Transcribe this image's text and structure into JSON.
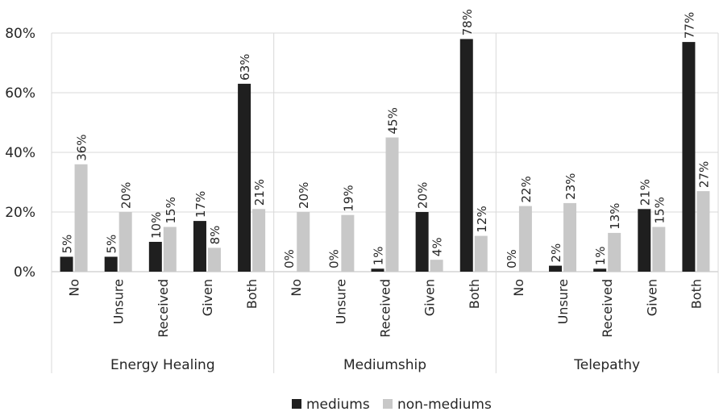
{
  "chart_data": {
    "type": "bar",
    "groups": [
      {
        "name": "Energy Healing",
        "categories": [
          "No",
          "Unsure",
          "Received",
          "Given",
          "Both"
        ]
      },
      {
        "name": "Mediumship",
        "categories": [
          "No",
          "Unsure",
          "Received",
          "Given",
          "Both"
        ]
      },
      {
        "name": "Telepathy",
        "categories": [
          "No",
          "Unsure",
          "Received",
          "Given",
          "Both"
        ]
      }
    ],
    "series": [
      {
        "name": "mediums",
        "color": "#1f1f1f",
        "values": [
          5,
          5,
          10,
          17,
          63,
          0,
          0,
          1,
          20,
          78,
          0,
          2,
          1,
          21,
          77
        ],
        "labels": [
          "5%",
          "5%",
          "10%",
          "17%",
          "63%",
          "0%",
          "0%",
          "1%",
          "20%",
          "78%",
          "0%",
          "2%",
          "1%",
          "21%",
          "77%"
        ]
      },
      {
        "name": "non-mediums",
        "color": "#c8c8c8",
        "values": [
          36,
          20,
          15,
          8,
          21,
          20,
          19,
          45,
          4,
          12,
          22,
          23,
          13,
          15,
          27
        ],
        "labels": [
          "36%",
          "20%",
          "15%",
          "8%",
          "21%",
          "20%",
          "19%",
          "45%",
          "4%",
          "12%",
          "22%",
          "23%",
          "13%",
          "15%",
          "27%"
        ]
      }
    ],
    "y_ticks": [
      "0%",
      "20%",
      "40%",
      "60%",
      "80%"
    ],
    "ylim": [
      0,
      80
    ],
    "y_unit": "percent",
    "grid": true,
    "legend_position": "bottom-center"
  }
}
